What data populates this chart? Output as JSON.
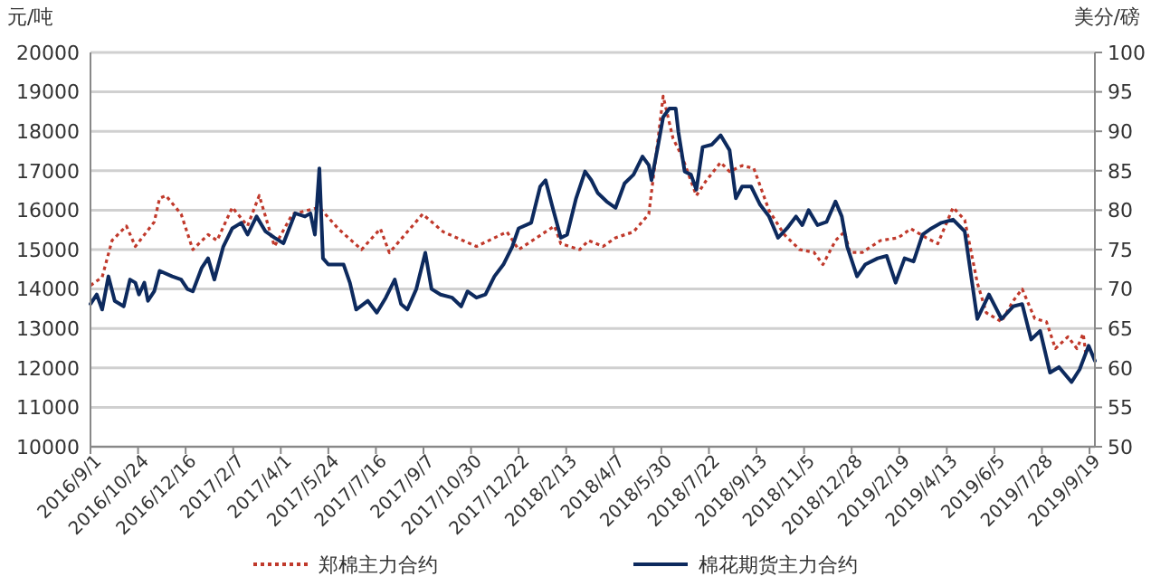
{
  "chart_data": {
    "type": "line",
    "ylabel": "元/吨",
    "y2label": "美分/磅",
    "xlim": [
      "2016-09-01",
      "2019-09-25"
    ],
    "xticks": [
      {
        "value": "2016-09-01",
        "label": "2016/9/1"
      },
      {
        "value": "2016-10-24",
        "label": "2016/10/24"
      },
      {
        "value": "2016-12-16",
        "label": "2016/12/16"
      },
      {
        "value": "2017-02-07",
        "label": "2017/2/7"
      },
      {
        "value": "2017-04-01",
        "label": "2017/4/1"
      },
      {
        "value": "2017-05-24",
        "label": "2017/5/24"
      },
      {
        "value": "2017-07-16",
        "label": "2017/7/16"
      },
      {
        "value": "2017-09-07",
        "label": "2017/9/7"
      },
      {
        "value": "2017-10-30",
        "label": "2017/10/30"
      },
      {
        "value": "2017-12-22",
        "label": "2017/12/22"
      },
      {
        "value": "2018-02-13",
        "label": "2018/2/13"
      },
      {
        "value": "2018-04-07",
        "label": "2018/4/7"
      },
      {
        "value": "2018-05-30",
        "label": "2018/5/30"
      },
      {
        "value": "2018-07-22",
        "label": "2018/7/22"
      },
      {
        "value": "2018-09-13",
        "label": "2018/9/13"
      },
      {
        "value": "2018-11-05",
        "label": "2018/11/5"
      },
      {
        "value": "2018-12-28",
        "label": "2018/12/28"
      },
      {
        "value": "2019-02-19",
        "label": "2019/2/19"
      },
      {
        "value": "2019-04-13",
        "label": "2019/4/13"
      },
      {
        "value": "2019-06-05",
        "label": "2019/6/5"
      },
      {
        "value": "2019-07-28",
        "label": "2019/7/28"
      },
      {
        "value": "2019-09-19",
        "label": "2019/9/19"
      }
    ],
    "ylim": [
      10000,
      20000
    ],
    "yticks": [
      10000,
      11000,
      12000,
      13000,
      14000,
      15000,
      16000,
      17000,
      18000,
      19000,
      20000
    ],
    "y2lim": [
      50,
      100
    ],
    "y2ticks": [
      50,
      55,
      60,
      65,
      70,
      75,
      80,
      85,
      90,
      95,
      100
    ],
    "grid": "y",
    "legend": "bottom",
    "series": [
      {
        "name": "郑棉主力合约",
        "color": "#c0392b",
        "line_style": "dotted",
        "x": [
          "2016-09-01",
          "2016-09-14",
          "2016-09-25",
          "2016-10-11",
          "2016-10-21",
          "2016-11-11",
          "2016-11-17",
          "2016-11-24",
          "2016-12-11",
          "2016-12-24",
          "2017-01-10",
          "2017-01-20",
          "2017-02-06",
          "2017-02-23",
          "2017-03-08",
          "2017-03-25",
          "2017-04-14",
          "2017-05-14",
          "2017-06-04",
          "2017-06-30",
          "2017-07-21",
          "2017-07-31",
          "2017-09-06",
          "2017-09-29",
          "2017-11-05",
          "2017-12-09",
          "2017-12-22",
          "2018-01-31",
          "2018-02-07",
          "2018-02-28",
          "2018-03-10",
          "2018-03-26",
          "2018-04-09",
          "2018-04-29",
          "2018-05-16",
          "2018-05-26",
          "2018-06-01",
          "2018-06-12",
          "2018-06-22",
          "2018-07-08",
          "2018-07-19",
          "2018-08-04",
          "2018-08-14",
          "2018-08-28",
          "2018-09-10",
          "2018-09-27",
          "2018-10-14",
          "2018-10-31",
          "2018-11-16",
          "2018-11-26",
          "2018-12-10",
          "2018-12-20",
          "2018-12-26",
          "2019-01-09",
          "2019-01-29",
          "2019-02-18",
          "2019-03-04",
          "2019-03-21",
          "2019-04-03",
          "2019-04-20",
          "2019-05-03",
          "2019-05-17",
          "2019-05-27",
          "2019-06-13",
          "2019-06-26",
          "2019-07-06",
          "2019-07-20",
          "2019-08-02",
          "2019-08-12",
          "2019-08-26",
          "2019-09-05",
          "2019-09-12",
          "2019-09-15"
        ],
        "values": [
          14090,
          14300,
          15230,
          15600,
          15080,
          15700,
          16300,
          16370,
          15900,
          15000,
          15380,
          15230,
          16070,
          15600,
          16370,
          15080,
          15900,
          16070,
          15530,
          15000,
          15530,
          14920,
          15900,
          15450,
          15080,
          15450,
          15000,
          15600,
          15150,
          15000,
          15230,
          15080,
          15300,
          15450,
          15900,
          17740,
          18890,
          17820,
          17360,
          16370,
          16750,
          17210,
          16980,
          17130,
          17060,
          15990,
          15380,
          15000,
          14930,
          14620,
          15230,
          15450,
          14930,
          14930,
          15230,
          15300,
          15530,
          15300,
          15150,
          16070,
          15750,
          14160,
          13400,
          13170,
          13700,
          14000,
          13250,
          13170,
          12490,
          12790,
          12490,
          12870,
          12330
        ]
      },
      {
        "name": "棉花期货主力合约",
        "color": "#0d2a5e",
        "line_style": "solid",
        "axis": "y2",
        "x": [
          "2016-09-01",
          "2016-09-08",
          "2016-09-14",
          "2016-09-21",
          "2016-09-28",
          "2016-10-08",
          "2016-10-15",
          "2016-10-21",
          "2016-10-25",
          "2016-10-31",
          "2016-11-04",
          "2016-11-11",
          "2016-11-17",
          "2016-12-01",
          "2016-12-11",
          "2016-12-18",
          "2016-12-24",
          "2017-01-03",
          "2017-01-10",
          "2017-01-17",
          "2017-01-27",
          "2017-02-06",
          "2017-02-16",
          "2017-02-23",
          "2017-03-05",
          "2017-03-15",
          "2017-03-25",
          "2017-04-04",
          "2017-04-17",
          "2017-04-28",
          "2017-05-04",
          "2017-05-09",
          "2017-05-14",
          "2017-05-18",
          "2017-05-24",
          "2017-06-10",
          "2017-06-17",
          "2017-06-24",
          "2017-07-07",
          "2017-07-17",
          "2017-07-27",
          "2017-08-06",
          "2017-08-13",
          "2017-08-20",
          "2017-08-30",
          "2017-09-09",
          "2017-09-16",
          "2017-09-26",
          "2017-10-09",
          "2017-10-19",
          "2017-10-26",
          "2017-11-05",
          "2017-11-15",
          "2017-11-25",
          "2017-12-05",
          "2017-12-15",
          "2017-12-22",
          "2018-01-05",
          "2018-01-15",
          "2018-01-21",
          "2018-01-28",
          "2018-02-07",
          "2018-02-14",
          "2018-02-24",
          "2018-03-06",
          "2018-03-13",
          "2018-03-20",
          "2018-03-30",
          "2018-04-09",
          "2018-04-19",
          "2018-04-29",
          "2018-05-09",
          "2018-05-16",
          "2018-05-19",
          "2018-05-26",
          "2018-06-01",
          "2018-06-08",
          "2018-06-15",
          "2018-06-18",
          "2018-06-25",
          "2018-07-02",
          "2018-07-08",
          "2018-07-15",
          "2018-07-25",
          "2018-08-04",
          "2018-08-14",
          "2018-08-21",
          "2018-08-28",
          "2018-09-07",
          "2018-09-17",
          "2018-09-27",
          "2018-10-07",
          "2018-10-17",
          "2018-10-27",
          "2018-11-03",
          "2018-11-10",
          "2018-11-20",
          "2018-11-30",
          "2018-12-10",
          "2018-12-17",
          "2018-12-23",
          "2019-01-03",
          "2019-01-12",
          "2019-01-26",
          "2019-02-05",
          "2019-02-15",
          "2019-02-25",
          "2019-03-07",
          "2019-03-17",
          "2019-03-27",
          "2019-04-07",
          "2019-04-20",
          "2019-05-03",
          "2019-05-17",
          "2019-05-30",
          "2019-06-13",
          "2019-06-26",
          "2019-07-06",
          "2019-07-16",
          "2019-07-26",
          "2019-08-06",
          "2019-08-16",
          "2019-08-30",
          "2019-09-08",
          "2019-09-18",
          "2019-09-25"
        ],
        "values": [
          68.1,
          69.3,
          67.4,
          71.6,
          68.5,
          67.8,
          71.2,
          70.8,
          69.3,
          70.8,
          68.5,
          69.7,
          72.3,
          71.6,
          71.2,
          70.0,
          69.7,
          72.7,
          73.9,
          71.2,
          75.4,
          77.7,
          78.4,
          76.9,
          79.2,
          77.3,
          76.5,
          75.8,
          79.6,
          79.2,
          79.6,
          76.9,
          85.3,
          73.9,
          73.1,
          73.1,
          70.8,
          67.4,
          68.5,
          67.0,
          68.9,
          71.2,
          68.1,
          67.4,
          70.0,
          74.6,
          70.0,
          69.3,
          68.9,
          67.8,
          69.7,
          68.9,
          69.3,
          71.6,
          73.1,
          75.4,
          77.7,
          78.4,
          83.0,
          83.8,
          80.7,
          76.5,
          76.9,
          81.5,
          84.9,
          83.8,
          82.2,
          81.1,
          80.3,
          83.4,
          84.5,
          86.8,
          85.7,
          83.8,
          88.0,
          91.8,
          92.9,
          92.9,
          89.9,
          84.9,
          84.5,
          82.6,
          88.0,
          88.3,
          89.5,
          87.6,
          81.5,
          83.0,
          83.0,
          80.7,
          79.2,
          76.5,
          77.7,
          79.2,
          78.1,
          80.0,
          78.1,
          78.5,
          81.1,
          79.2,
          75.4,
          71.6,
          73.1,
          73.9,
          74.2,
          70.8,
          73.9,
          73.5,
          76.9,
          77.7,
          78.4,
          78.8,
          77.3,
          66.2,
          69.3,
          66.2,
          67.8,
          68.1,
          63.6,
          64.7,
          59.4,
          60.1,
          58.2,
          59.8,
          62.8,
          60.9
        ]
      }
    ]
  }
}
